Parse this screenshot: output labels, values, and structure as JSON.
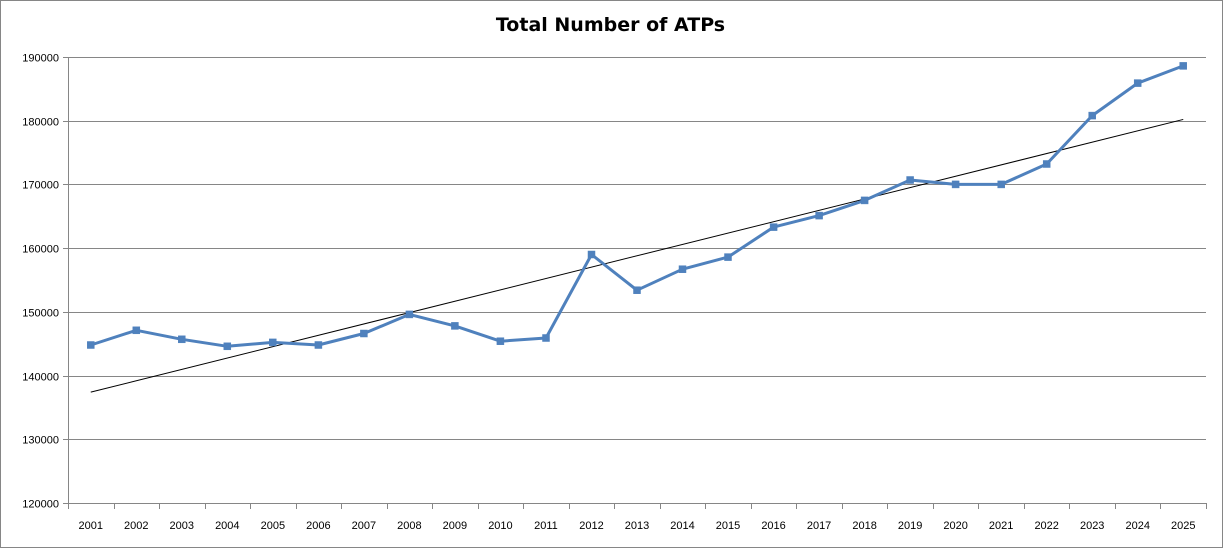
{
  "chart_data": {
    "type": "line",
    "title": "Total Number of ATPs",
    "xlabel": "",
    "ylabel": "",
    "categories": [
      "2001",
      "2002",
      "2003",
      "2004",
      "2005",
      "2006",
      "2007",
      "2008",
      "2009",
      "2010",
      "2011",
      "2012",
      "2013",
      "2014",
      "2015",
      "2016",
      "2017",
      "2018",
      "2019",
      "2020",
      "2021",
      "2022",
      "2023",
      "2024",
      "2025"
    ],
    "series": [
      {
        "values": [
          144800,
          147100,
          145700,
          144600,
          145200,
          144800,
          146600,
          149600,
          147800,
          145400,
          145900,
          159000,
          153400,
          156700,
          158600,
          163300,
          165100,
          167500,
          170700,
          170000,
          170000,
          173200,
          180800,
          185900,
          188600
        ],
        "color": "#4F81BD",
        "marker": "square"
      }
    ],
    "trendline": {
      "type": "linear",
      "start_value": 137400,
      "end_value": 180200,
      "color": "#000000"
    },
    "ylim": [
      120000,
      190000
    ],
    "yticks": [
      "120000",
      "130000",
      "140000",
      "150000",
      "160000",
      "170000",
      "180000",
      "190000"
    ],
    "grid": "horizontal",
    "legend": "none"
  }
}
